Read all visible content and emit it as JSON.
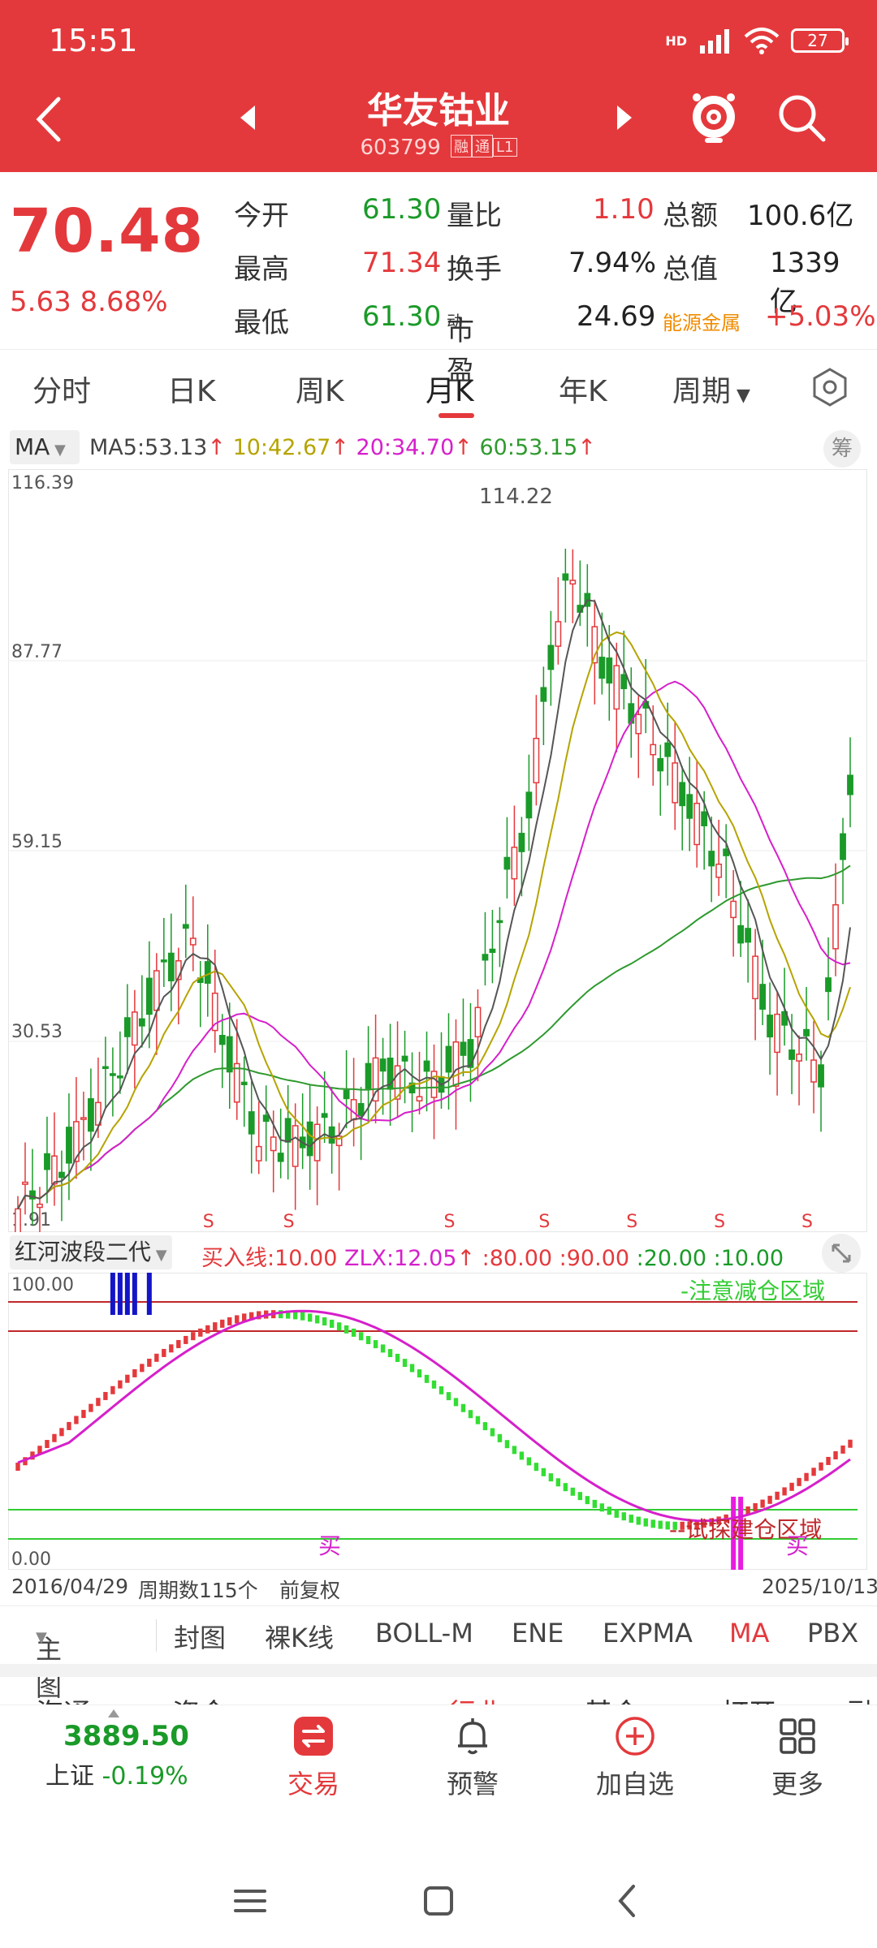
{
  "status": {
    "time": "15:51",
    "battery": "27",
    "network": "HD"
  },
  "header": {
    "stock_name": "华友钴业",
    "stock_code": "603799",
    "tags": [
      "融",
      "通",
      "L1"
    ]
  },
  "quote": {
    "price": "70.48",
    "change": "5.63",
    "change_pct": "8.68%",
    "rows": [
      {
        "l1": "今开",
        "v1": "61.30",
        "l2": "量比",
        "v2": "1.10",
        "l3": "总额",
        "v3": "100.6亿"
      },
      {
        "l1": "最高",
        "v1": "71.34",
        "l2": "换手",
        "v2": "7.94%",
        "l3": "总值",
        "v3": "1339亿"
      },
      {
        "l1": "最低",
        "v1": "61.30",
        "l2": "市盈",
        "sup2": "动",
        "v2": "24.69",
        "l3": "能源金属",
        "v3": "+5.03%"
      }
    ]
  },
  "tabs": [
    "分时",
    "日K",
    "周K",
    "月K",
    "年K",
    "周期"
  ],
  "active_tab": "月K",
  "ma_legend": {
    "type": "MA",
    "ma5": "MA5:53.13",
    "ma10": "10:42.67",
    "ma20": "20:34.70",
    "ma60": "60:53.15",
    "chou": "筹",
    "colors": {
      "ma5": "#444444",
      "ma10": "#b5a400",
      "ma20": "#d61fcb",
      "ma60": "#2e9a2e"
    }
  },
  "price_axis": {
    "labels": [
      "116.39",
      "87.77",
      "59.15",
      "30.53",
      "1.91"
    ],
    "max_label": "114.22"
  },
  "signal_label": "S",
  "indicator": {
    "name": "红河波段二代",
    "buy_line": "买入线:10.00",
    "zlx": "ZLX:12.05",
    "v80": ":80.00",
    "v90": ":90.00",
    "v20": ":20.00",
    "v10": ":10.00",
    "top_label": "100.00",
    "bottom_label": "0.00",
    "zone_reduce": "-注意减仓区域",
    "zone_build": "--试探建仓区域",
    "buy_mark": "买"
  },
  "range": {
    "start": "2016/04/29",
    "count": "周期数115个",
    "adjust": "前复权",
    "end": "2025/10/13"
  },
  "indicator_tabs": [
    "主图",
    "封图",
    "裸K线",
    "BOLL-M",
    "ENE",
    "EXPMA",
    "MA",
    "PBX"
  ],
  "active_indicator": "MA",
  "cut_row": [
    "海通",
    "资金",
    "行业",
    "基金",
    "打开",
    "融"
  ],
  "bottom_nav": {
    "index_value": "3889.50",
    "index_name": "上证",
    "index_change": "-0.19%",
    "items": [
      "交易",
      "预警",
      "加自选",
      "更多"
    ]
  }
}
